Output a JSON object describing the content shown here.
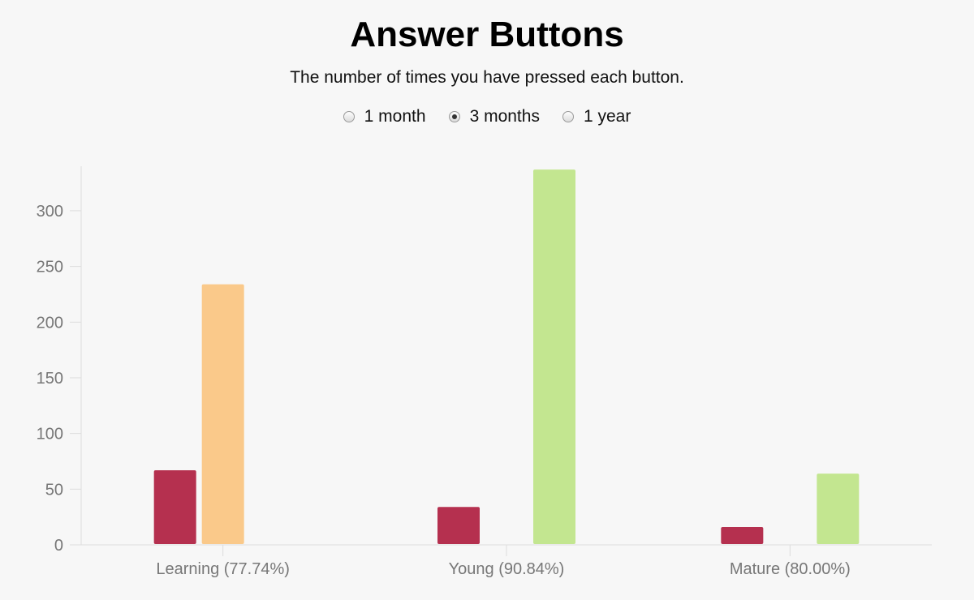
{
  "title": "Answer Buttons",
  "subtitle": "The number of times you have pressed each button.",
  "range_options": [
    {
      "label": "1 month",
      "checked": false
    },
    {
      "label": "3 months",
      "checked": true
    },
    {
      "label": "1 year",
      "checked": false
    }
  ],
  "colors": {
    "again": "#b5304f",
    "hard": "#fac98a",
    "good": "#c3e690",
    "axis": "#dddddd",
    "text": "#777777"
  },
  "chart_data": {
    "type": "bar",
    "categories": [
      "Learning (77.74%)",
      "Young (90.84%)",
      "Mature (80.00%)"
    ],
    "series": [
      {
        "values": [
          67,
          34,
          16
        ],
        "color": "#b5304f"
      },
      {
        "values": [
          234,
          0,
          0
        ],
        "color": "#fac98a"
      },
      {
        "values": [
          0,
          337,
          64
        ],
        "color": "#c3e690"
      }
    ],
    "yticks": [
      0,
      50,
      100,
      150,
      200,
      250,
      300
    ],
    "ylim": [
      0,
      340
    ],
    "grid": false
  }
}
